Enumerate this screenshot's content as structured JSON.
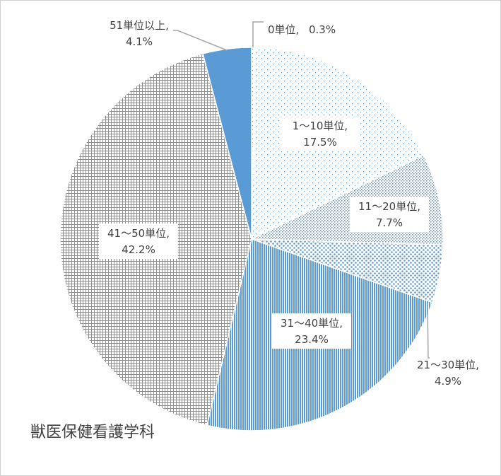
{
  "chart_data": {
    "type": "pie",
    "title": "獣医保健看護学科",
    "categories": [
      "0単位",
      "1～10単位",
      "11～20単位",
      "21～30単位",
      "31～40単位",
      "41～50単位",
      "51単位以上"
    ],
    "values": [
      0.3,
      17.5,
      7.7,
      4.9,
      23.4,
      42.2,
      4.1
    ],
    "data_labels": [
      {
        "name": "0単位,",
        "value": "0.3%"
      },
      {
        "name": "1～10単位,",
        "value": "17.5%"
      },
      {
        "name": "11～20単位,",
        "value": "7.7%"
      },
      {
        "name": "21～30単位,",
        "value": "4.9%"
      },
      {
        "name": "31～40単位,",
        "value": "23.4%"
      },
      {
        "name": "41～50単位,",
        "value": "42.2%"
      },
      {
        "name": "51単位以上,",
        "value": "4.1%"
      }
    ],
    "colors": [
      "#5b9bd5",
      "#5b9bd5",
      "#5b9bd5",
      "#5b9bd5",
      "#5b9bd5",
      "#5b9bd5",
      "#5b9bd5"
    ],
    "legend": "none"
  }
}
